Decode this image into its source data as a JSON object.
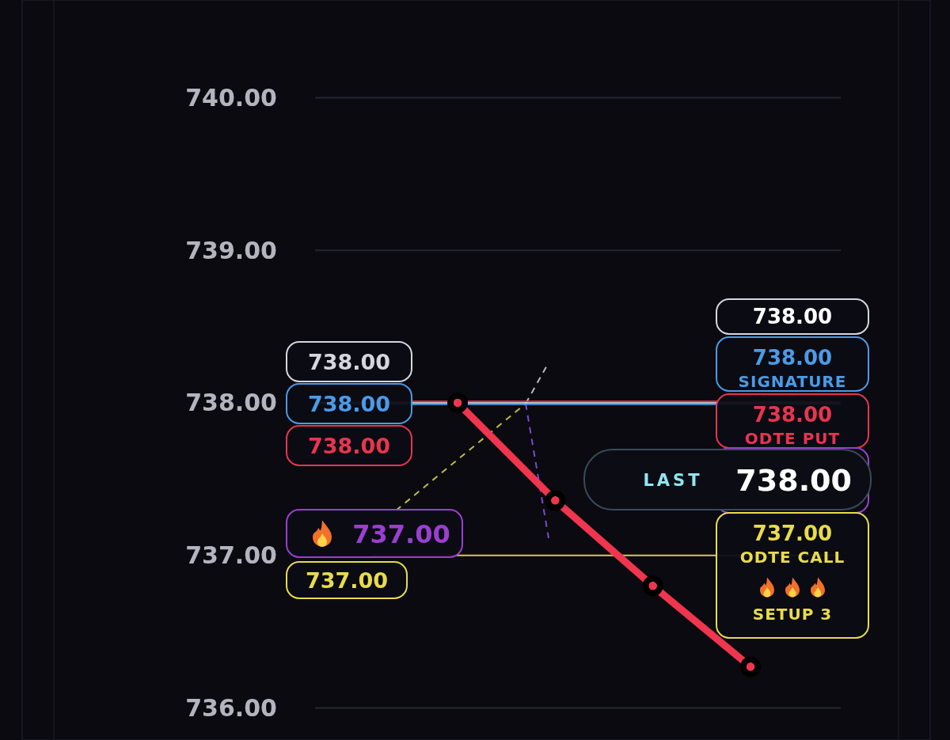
{
  "chart_data": {
    "type": "line",
    "categories": [
      null,
      null,
      null,
      null
    ],
    "series": [
      {
        "color": "#f0354f",
        "values": [
          738.0,
          737.36,
          736.8,
          736.27
        ]
      }
    ],
    "ylim": [
      735.79,
      740.64
    ],
    "yticks": [
      {
        "value": 736,
        "label": "736.00"
      },
      {
        "value": 737,
        "label": "737.00"
      },
      {
        "value": 738,
        "label": "738.00"
      },
      {
        "value": 739,
        "label": "739.00"
      },
      {
        "value": 740,
        "label": "740.00"
      }
    ],
    "grid": "y",
    "marker": "circle",
    "tick_labels": "y",
    "ref_lines": [
      {
        "axis": "y",
        "value": 738,
        "label": null,
        "color": "#d6d6de"
      },
      {
        "axis": "y",
        "value": 738,
        "label": "SIGNATURE",
        "color": "#4a9be8"
      },
      {
        "axis": "y",
        "value": 738,
        "label": "ODTE PUT",
        "color": "#e8354f"
      },
      {
        "axis": "y",
        "value": 737,
        "label": null,
        "color": "#9a3fd0"
      },
      {
        "axis": "y",
        "value": 737,
        "label": "ODTE CALL",
        "color": "#e8dc4a"
      }
    ],
    "annotations": [
      "738.00",
      "738.00",
      "738.00",
      "737.00",
      "737.00",
      "738.00",
      "738.00",
      "738.00",
      "LAST",
      "738.00",
      "737.00",
      "SETUP 3"
    ]
  }
}
